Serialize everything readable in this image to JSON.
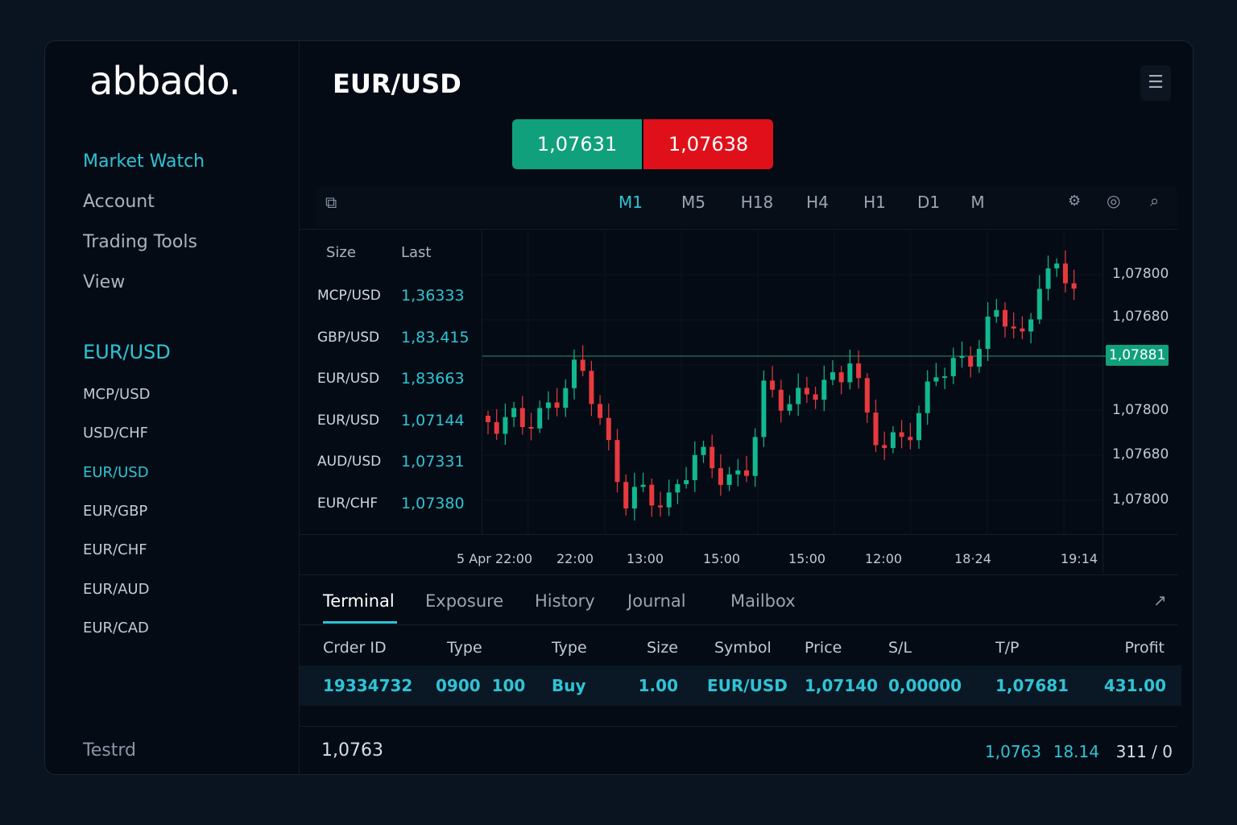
{
  "sidebar": {
    "logo": "abbado.",
    "menu": [
      "Market Watch",
      "Account",
      "Trading Tools",
      "View"
    ],
    "section": "EUR/USD",
    "symbols": [
      "MCP/USD",
      "USD/CHF",
      "EUR/USD",
      "EUR/GBP",
      "EUR/CHF",
      "EUR/AUD",
      "EUR/CAD"
    ],
    "footer": "Testrd"
  },
  "header": {
    "title": "EUR/USD",
    "bid": "1,07631",
    "ask": "1,07638"
  },
  "timeframes": [
    "M1",
    "M5",
    "H18",
    "H4",
    "H1",
    "D1",
    "M"
  ],
  "watch": {
    "columns": [
      "Size",
      "Last"
    ],
    "rows": [
      [
        "MCP/USD",
        "1,36333"
      ],
      [
        "GBP/USD",
        "1,83.415"
      ],
      [
        "EUR/USD",
        "1,83663"
      ],
      [
        "EUR/USD",
        "1,07144"
      ],
      [
        "AUD/USD",
        "1,07331"
      ],
      [
        "EUR/CHF",
        "1,07380"
      ]
    ]
  },
  "chart": {
    "price_labels": [
      "1,07800",
      "1,07680",
      "1,07800",
      "1,07680",
      "1,07800"
    ],
    "current": "1,07881",
    "time_labels": [
      "5 Apr 22:00",
      "22:00",
      "13:00",
      "15:00",
      "15:00",
      "12:00",
      "18·24",
      "19:14"
    ]
  },
  "terminal": {
    "tabs": [
      "Terminal",
      "Exposure",
      "History",
      "Journal",
      "Mailbox"
    ],
    "columns": [
      "Crder ID",
      "Type",
      "Type",
      "Size",
      "Symbol",
      "Price",
      "S/L",
      "T/P",
      "Profit"
    ],
    "rows": [
      [
        "19334732",
        "0900  100",
        "Buy",
        "1.00",
        "EUR/USD",
        "1,07140",
        "0,00000",
        "1,07681",
        "431.00"
      ]
    ]
  },
  "status": {
    "left": "1,0763",
    "values": [
      "1,0763",
      "18.14",
      "311 / 0"
    ]
  }
}
